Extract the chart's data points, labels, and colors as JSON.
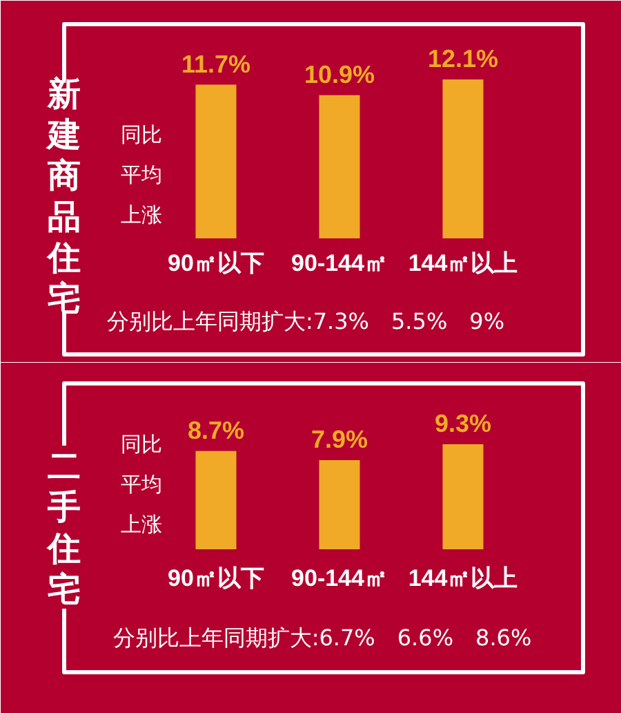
{
  "chart_data": [
    {
      "type": "bar",
      "title": "新建商品住宅",
      "ylabel": "同比平均上涨",
      "categories": [
        "90㎡以下",
        "90-144㎡",
        "144㎡以上"
      ],
      "values": [
        11.7,
        10.9,
        12.1
      ],
      "value_labels": [
        "11.7%",
        "10.9%",
        "12.1%"
      ],
      "color": "#f0aa28",
      "tick_labels": "x",
      "annotations": [
        "分别比上年同期扩大:7.3%　5.5%　9%"
      ]
    },
    {
      "type": "bar",
      "title": "二手住宅",
      "ylabel": "同比平均上涨",
      "categories": [
        "90㎡以下",
        "90-144㎡",
        "144㎡以上"
      ],
      "values": [
        8.7,
        7.9,
        9.3
      ],
      "value_labels": [
        "8.7%",
        "7.9%",
        "9.3%"
      ],
      "color": "#f0aa28",
      "tick_labels": "x",
      "annotations": [
        "分别比上年同期扩大:6.7%　6.6%　8.6%"
      ]
    }
  ]
}
